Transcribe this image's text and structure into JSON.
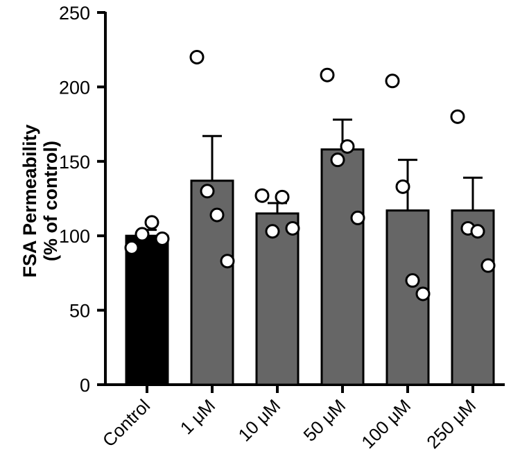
{
  "chart_data": {
    "type": "bar",
    "title": "",
    "xlabel": "",
    "ylabel": [
      "FSA Permeability",
      "(% of control)"
    ],
    "ylim": [
      0,
      250
    ],
    "yticks": [
      0,
      50,
      100,
      150,
      200,
      250
    ],
    "categories": [
      "Control",
      "1 μM",
      "10 μM",
      "50 μM",
      "100 μM",
      "250 μM"
    ],
    "values": [
      100,
      137,
      115,
      158,
      117,
      117
    ],
    "error_upper": [
      104,
      167,
      122,
      178,
      151,
      139
    ],
    "bar_colors": [
      "#000000",
      "#666666",
      "#666666",
      "#666666",
      "#666666",
      "#666666"
    ],
    "points": [
      [
        92,
        101,
        109,
        98
      ],
      [
        220,
        130,
        114,
        83
      ],
      [
        127,
        103,
        126,
        105
      ],
      [
        208,
        151,
        160,
        112
      ],
      [
        204,
        133,
        70,
        61
      ],
      [
        180,
        105,
        103,
        80
      ]
    ]
  }
}
